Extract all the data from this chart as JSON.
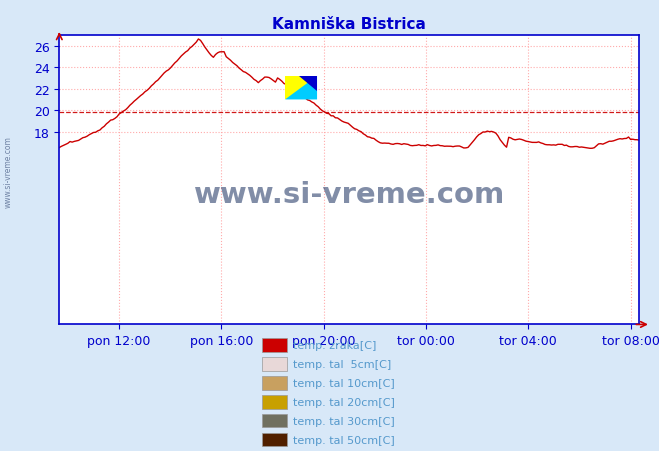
{
  "title": "Kamniška Bistrica",
  "title_color": "#0000cc",
  "bg_color": "#d8e8f8",
  "plot_bg_color": "#ffffff",
  "axis_color": "#0000cc",
  "grid_color": "#ffaaaa",
  "grid_style": ":",
  "line_color": "#cc0000",
  "line_width": 1.0,
  "ylim": [
    0,
    27
  ],
  "yticks": [
    18,
    20,
    22,
    24,
    26
  ],
  "ylabel_color": "#0000cc",
  "xlabel_color": "#0000cc",
  "xtick_labels": [
    "pon 12:00",
    "pon 16:00",
    "pon 20:00",
    "tor 00:00",
    "tor 04:00",
    "tor 08:00"
  ],
  "watermark_text": "www.si-vreme.com",
  "watermark_color": "#1a3060",
  "watermark_alpha": 0.55,
  "hline_y": 19.85,
  "hline_color": "#cc0000",
  "hline_style": "--",
  "legend_items": [
    {
      "label": "temp. zraka[C]",
      "color": "#cc0000"
    },
    {
      "label": "temp. tal  5cm[C]",
      "color": "#e8d8d8"
    },
    {
      "label": "temp. tal 10cm[C]",
      "color": "#c8a060"
    },
    {
      "label": "temp. tal 20cm[C]",
      "color": "#c8a000"
    },
    {
      "label": "temp. tal 30cm[C]",
      "color": "#707060"
    },
    {
      "label": "temp. tal 50cm[C]",
      "color": "#502000"
    }
  ]
}
